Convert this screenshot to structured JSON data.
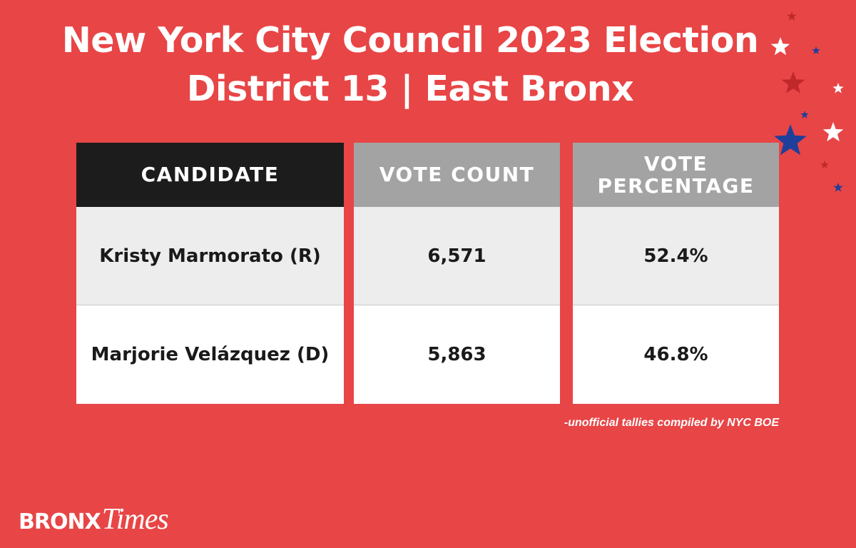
{
  "header": {
    "title_line1": "New York City Council 2023 Election",
    "title_line2": "District 13 | East Bronx"
  },
  "chart_data": {
    "type": "table",
    "columns": [
      "CANDIDATE",
      "VOTE COUNT",
      "VOTE\nPERCENTAGE"
    ],
    "rows": [
      [
        "Kristy Marmorato (R)",
        "6,571",
        "52.4%"
      ],
      [
        "Marjorie Velázquez (D)",
        "5,863",
        "46.8%"
      ]
    ]
  },
  "footnote": "-unofficial tallies compiled by NYC BOE",
  "logo": {
    "part1": "BRONX",
    "part2": "Times"
  },
  "decoration": {
    "stars": [
      {
        "color": "#c0282a"
      },
      {
        "color": "#ffffff"
      },
      {
        "color": "#1f3f9a"
      },
      {
        "color": "#c0282a"
      },
      {
        "color": "#ffffff"
      },
      {
        "color": "#1f3f9a"
      },
      {
        "color": "#1f3f9a"
      },
      {
        "color": "#ffffff"
      },
      {
        "color": "#c0282a"
      },
      {
        "color": "#1f3f9a"
      }
    ]
  },
  "colors": {
    "background": "#e84546",
    "header_dark": "#1c1c1c",
    "header_gray": "#a3a3a3",
    "row_light": "#ededed",
    "row_white": "#ffffff"
  }
}
